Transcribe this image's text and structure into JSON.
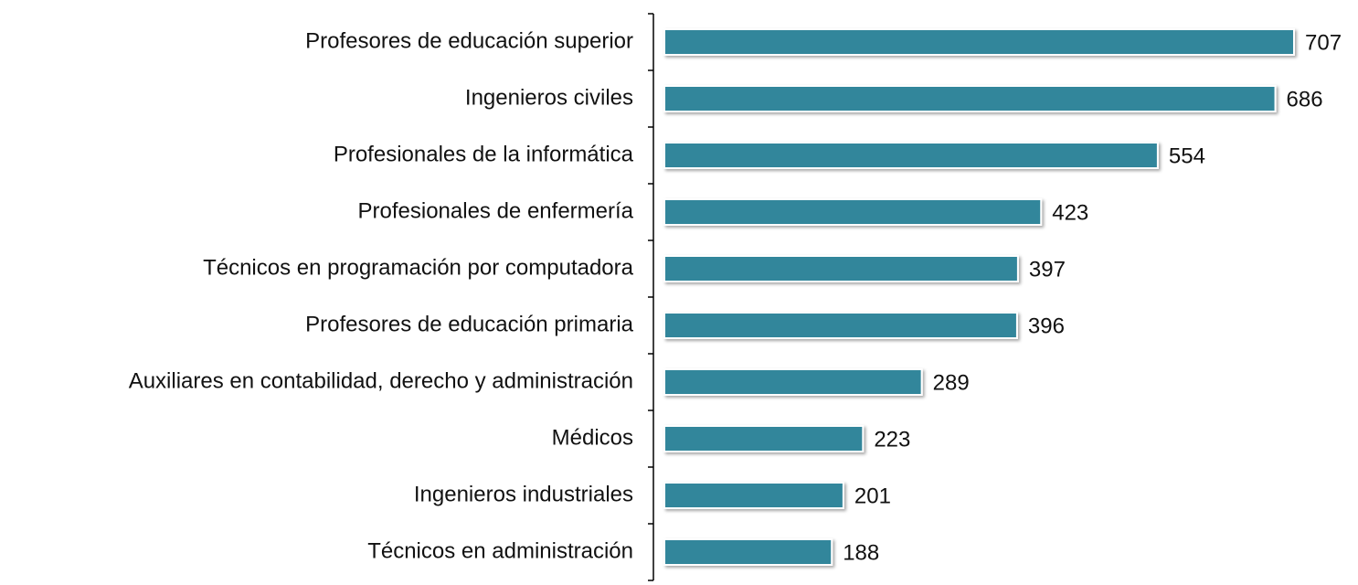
{
  "chart_data": {
    "type": "barh",
    "color": "#33869b",
    "categories": [
      "Profesores de educación superior",
      "Ingenieros civiles",
      "Profesionales de la informática",
      "Profesionales de enfermería",
      "Técnicos en programación por computadora",
      "Profesores de educación primaria",
      "Auxiliares en contabilidad, derecho y administración",
      "Médicos",
      "Ingenieros industriales",
      "Técnicos en administración"
    ],
    "values": [
      707,
      686,
      554,
      423,
      397,
      396,
      289,
      223,
      201,
      188
    ]
  }
}
